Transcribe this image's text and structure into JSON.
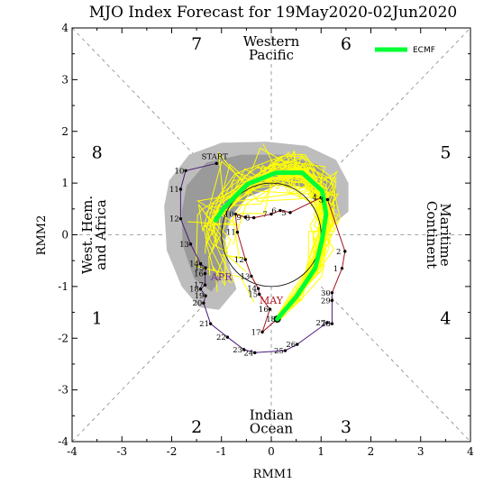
{
  "title": "MJO Index Forecast for 19May2020-02Jun2020",
  "chart_data": {
    "type": "scatter",
    "title": "MJO Index Forecast for 19May2020-02Jun2020",
    "xlabel": "RMM1",
    "ylabel": "RMM2",
    "xlim": [
      -4,
      4
    ],
    "ylim": [
      -4,
      4
    ],
    "xticks": [
      "-4",
      "-3",
      "-2",
      "-1",
      "0",
      "1",
      "2",
      "3",
      "4"
    ],
    "yticks": [
      "-4",
      "-3",
      "-2",
      "-1",
      "0",
      "1",
      "2",
      "3",
      "4"
    ],
    "grid": false,
    "legend_position": "top-right",
    "phase_labels": [
      {
        "label": "1",
        "x": -3.5,
        "y": -1.6
      },
      {
        "label": "2",
        "x": -1.5,
        "y": -3.7
      },
      {
        "label": "3",
        "x": 1.5,
        "y": -3.7
      },
      {
        "label": "4",
        "x": 3.5,
        "y": -1.6
      },
      {
        "label": "5",
        "x": 3.5,
        "y": 1.6
      },
      {
        "label": "6",
        "x": 1.5,
        "y": 3.7
      },
      {
        "label": "7",
        "x": -1.5,
        "y": 3.7
      },
      {
        "label": "8",
        "x": -3.5,
        "y": 1.6
      }
    ],
    "regions": {
      "top": [
        "Western",
        "Pacific"
      ],
      "bottom": [
        "Indian",
        "Ocean"
      ],
      "left": [
        "West. Hem.",
        "and Africa"
      ],
      "right": [
        "Maritime",
        "Continent"
      ]
    },
    "start_label": "START",
    "month_labels": [
      {
        "label": "APR",
        "x": -1.0,
        "y": -0.88,
        "color": "#7a2d8e"
      },
      {
        "label": "MAY",
        "x": 0.0,
        "y": -1.33,
        "color": "#b0111b"
      }
    ],
    "observed_april": {
      "color": "#4a1a78",
      "points": [
        {
          "day": "START",
          "x": -1.1,
          "y": 1.38
        },
        {
          "day": "10",
          "x": -1.72,
          "y": 1.24
        },
        {
          "day": "11",
          "x": -1.82,
          "y": 0.88
        },
        {
          "day": "12",
          "x": -1.82,
          "y": 0.31
        },
        {
          "day": "13",
          "x": -1.62,
          "y": -0.18
        },
        {
          "day": "14",
          "x": -1.42,
          "y": -0.56
        },
        {
          "day": "15",
          "x": -1.32,
          "y": -0.64
        },
        {
          "day": "16",
          "x": -1.33,
          "y": -0.75
        },
        {
          "day": "17",
          "x": -1.33,
          "y": -0.97
        },
        {
          "day": "18",
          "x": -1.42,
          "y": -1.05
        },
        {
          "day": "19",
          "x": -1.32,
          "y": -1.18
        },
        {
          "day": "20",
          "x": -1.36,
          "y": -1.32
        },
        {
          "day": "21",
          "x": -1.22,
          "y": -1.72
        },
        {
          "day": "22",
          "x": -0.88,
          "y": -1.98
        },
        {
          "day": "23",
          "x": -0.55,
          "y": -2.22
        },
        {
          "day": "24",
          "x": -0.33,
          "y": -2.28
        },
        {
          "day": "25",
          "x": 0.28,
          "y": -2.24
        },
        {
          "day": "26",
          "x": 0.52,
          "y": -2.12
        },
        {
          "day": "27",
          "x": 1.12,
          "y": -1.7
        },
        {
          "day": "28",
          "x": 1.22,
          "y": -1.72
        },
        {
          "day": "29",
          "x": 1.22,
          "y": -1.27
        },
        {
          "day": "30",
          "x": 1.22,
          "y": -1.12
        }
      ]
    },
    "observed_may": {
      "color": "#a0111b",
      "points": [
        {
          "day": "1",
          "x": 1.42,
          "y": -0.65
        },
        {
          "day": "2",
          "x": 1.48,
          "y": -0.32
        },
        {
          "day": "3",
          "x": 1.13,
          "y": 0.68
        },
        {
          "day": "4",
          "x": 1.0,
          "y": 0.72
        },
        {
          "day": "5",
          "x": 0.38,
          "y": 0.43
        },
        {
          "day": "6",
          "x": 0.18,
          "y": 0.47
        },
        {
          "day": "7",
          "x": 0.0,
          "y": 0.4
        },
        {
          "day": "8",
          "x": -0.35,
          "y": 0.33
        },
        {
          "day": "9",
          "x": -0.52,
          "y": 0.34
        },
        {
          "day": "10",
          "x": -0.72,
          "y": 0.4
        },
        {
          "day": "11",
          "x": -0.68,
          "y": 0.05
        },
        {
          "day": "12",
          "x": -0.52,
          "y": -0.48
        },
        {
          "day": "13",
          "x": -0.4,
          "y": -0.8
        },
        {
          "day": "14",
          "x": -0.26,
          "y": -1.04
        },
        {
          "day": "15",
          "x": -0.24,
          "y": -1.15
        },
        {
          "day": "16",
          "x": -0.03,
          "y": -1.44
        },
        {
          "day": "17",
          "x": -0.18,
          "y": -1.88
        },
        {
          "day": "18",
          "x": 0.12,
          "y": -1.63
        }
      ]
    },
    "ecmf_mean": {
      "name": "ECMF",
      "color": "#00ff33",
      "points": [
        {
          "x": 0.12,
          "y": -1.63
        },
        {
          "x": 0.5,
          "y": -1.2
        },
        {
          "x": 0.88,
          "y": -0.65
        },
        {
          "x": 1.02,
          "y": -0.1
        },
        {
          "x": 1.1,
          "y": 0.4
        },
        {
          "x": 1.02,
          "y": 0.85
        },
        {
          "x": 0.62,
          "y": 1.2
        },
        {
          "x": 0.1,
          "y": 1.2
        },
        {
          "x": -0.48,
          "y": 0.98
        },
        {
          "x": -0.95,
          "y": 0.52
        },
        {
          "x": -1.12,
          "y": 0.28
        }
      ]
    },
    "ensemble_band": {
      "color": "#ffff00",
      "description_count": 51
    }
  }
}
